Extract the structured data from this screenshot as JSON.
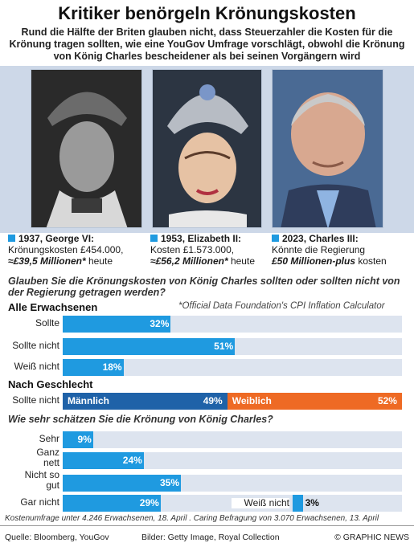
{
  "title": "Kritiker benörgeln Krönungskosten",
  "subtitle": "Rund die Hälfte der Briten glauben nicht, dass Steuerzahler die Kosten für die Krönung tragen sollten, wie eine YouGov Umfrage vorschlägt, obwohl die Krönung von König Charles bescheidener als bei seinen Vorgängern wird",
  "monarchs": [
    {
      "heading": "1937, George VI:",
      "line1": "Krönungskosten £454.000,",
      "line2_bold": "≈£39,5 Millionen*",
      "line2_rest": " heute"
    },
    {
      "heading": "1953, Elizabeth II:",
      "line1": "Kosten £1.573.000,",
      "line2_bold": "≈£56,2 Millionen*",
      "line2_rest": " heute"
    },
    {
      "heading": "2023, Charles III:",
      "line1": "Könnte die Regierung",
      "line2_bold": "£50 Millionen-plus",
      "line2_rest": " kosten"
    }
  ],
  "question1": "Glauben Sie die Krönungskosten von König Charles sollten oder sollten nicht von der Regierung getragen werden?",
  "section_all": "Alle Erwachsenen",
  "inflation_note": "*Official Data Foundation's CPI Inflation Calculator",
  "section_gender": "Nach Geschlecht",
  "question2": "Wie sehr schätzen Sie die Krönung von König Charles?",
  "colors": {
    "bar": "#1f9ae0",
    "male": "#1f62a8",
    "female": "#ee6a24",
    "track": "#dde4ef"
  },
  "chart_data": [
    {
      "type": "bar",
      "title": "Alle Erwachsenen",
      "categories": [
        "Sollte",
        "Sollte nicht",
        "Weiß nicht"
      ],
      "values": [
        32,
        51,
        18
      ],
      "value_labels": [
        "32%",
        "51%",
        "18%"
      ],
      "ylim": [
        0,
        100
      ]
    },
    {
      "type": "bar",
      "title": "Nach Geschlecht",
      "categories": [
        "Sollte nicht"
      ],
      "series": [
        {
          "name": "Männlich",
          "values": [
            49
          ],
          "label": "49%"
        },
        {
          "name": "Weiblich",
          "values": [
            52
          ],
          "label": "52%"
        }
      ]
    },
    {
      "type": "bar",
      "title": "Wie sehr schätzen Sie die Krönung von König Charles?",
      "categories": [
        "Sehr",
        "Ganz nett",
        "Nicht so gut",
        "Gar nicht",
        "Weiß nicht"
      ],
      "label_lines": [
        [
          "Sehr"
        ],
        [
          "Ganz",
          "nett"
        ],
        [
          "Nicht so",
          "gut"
        ],
        [
          "Gar nicht"
        ],
        [
          "Weiß nicht"
        ]
      ],
      "values": [
        9,
        24,
        35,
        29,
        3
      ],
      "value_labels": [
        "9%",
        "24%",
        "35%",
        "29%",
        "3%"
      ],
      "ylim": [
        0,
        100
      ]
    }
  ],
  "survey_note": "Kostenumfrage  unter 4.246 Erwachsenen, 18. April . Caring Befragung von 3.070 Erwachsenen, 13. April",
  "footer": {
    "source": "Quelle: Bloomberg, YouGov",
    "pictures": "Bilder: Getty Image, Royal Collection",
    "credit": "© GRAPHIC NEWS"
  }
}
